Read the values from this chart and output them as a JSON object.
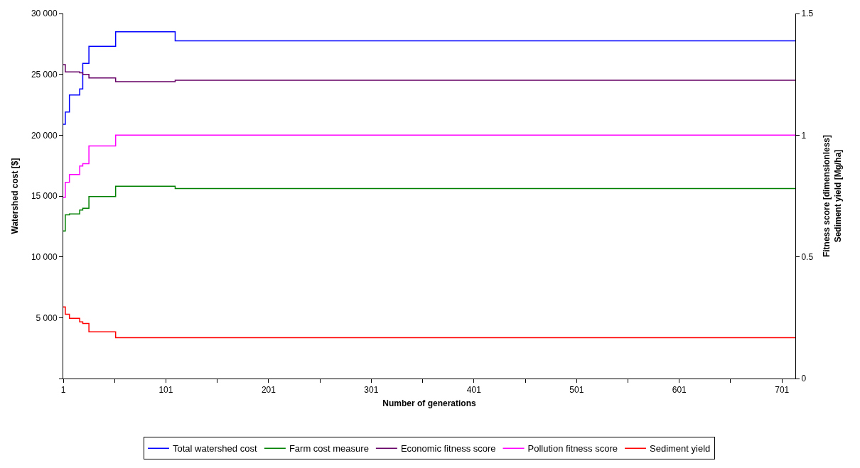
{
  "chart_data": {
    "type": "step",
    "xlabel": "Number of generations",
    "ylabel": "Watershed cost [$]",
    "y2label": "Fitness score [dimensionless]\nSediment yield [Mg/ha]",
    "x": [
      1,
      3,
      7,
      17,
      20,
      26,
      52,
      110,
      714
    ],
    "xlim": [
      1,
      714
    ],
    "xticks": [
      1,
      {
        "value": 51,
        "label": null
      },
      101,
      {
        "value": 151,
        "label": null
      },
      201,
      {
        "value": 251,
        "label": null
      },
      301,
      {
        "value": 351,
        "label": null
      },
      401,
      {
        "value": 451,
        "label": null
      },
      501,
      {
        "value": 551,
        "label": null
      },
      601,
      {
        "value": 651,
        "label": null
      },
      701
    ],
    "ylim": [
      0,
      30000
    ],
    "yticks": [
      {
        "value": 0,
        "label": null
      },
      {
        "value": 5000,
        "label": "5 000"
      },
      {
        "value": 10000,
        "label": "10 000"
      },
      {
        "value": 15000,
        "label": "15 000"
      },
      {
        "value": 20000,
        "label": "20 000"
      },
      {
        "value": 25000,
        "label": "25 000"
      },
      {
        "value": 30000,
        "label": "30 000"
      }
    ],
    "y2lim": [
      0,
      1.5
    ],
    "y2ticks": [
      0,
      0.5,
      1,
      1.5
    ],
    "series": [
      {
        "name": "Total watershed cost",
        "color": "#0000ff",
        "values": [
          20900,
          21900,
          23300,
          23800,
          25900,
          27300,
          28500,
          27750,
          27750
        ]
      },
      {
        "name": "Farm cost measure",
        "color": "#008000",
        "axis": "y2",
        "values": [
          0.606,
          0.673,
          0.676,
          0.692,
          0.7,
          0.748,
          0.79,
          0.781,
          0.781
        ]
      },
      {
        "name": "Economic fitness score",
        "color": "#660066",
        "axis": "y2",
        "values": [
          1.29,
          1.26,
          1.26,
          1.256,
          1.25,
          1.235,
          1.22,
          1.226,
          1.226
        ]
      },
      {
        "name": "Pollution fitness score",
        "color": "#ff00ff",
        "axis": "y2",
        "values": [
          0.744,
          0.806,
          0.838,
          0.873,
          0.883,
          0.956,
          1.0,
          1.0,
          1.0
        ]
      },
      {
        "name": "Sediment yield",
        "color": "#ff0000",
        "axis": "y2",
        "values": [
          0.294,
          0.264,
          0.247,
          0.233,
          0.226,
          0.192,
          0.168,
          0.168,
          0.168
        ]
      }
    ],
    "legend": "bottom",
    "line_style": "solid",
    "marker": "none"
  }
}
